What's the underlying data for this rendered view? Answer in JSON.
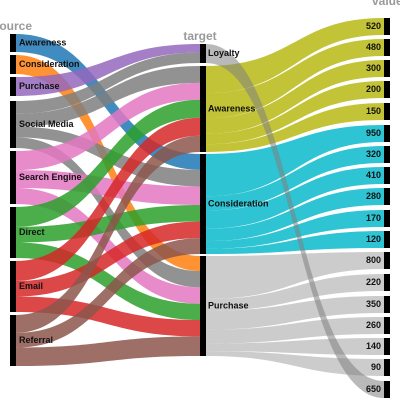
{
  "chart_data": {
    "type": "sankey",
    "columns": [
      "source",
      "target",
      "value"
    ],
    "colors": {
      "Awareness": "#1f77b4",
      "Consideration": "#ff7f0e",
      "Purchase": "#9467bd",
      "Social Media": "#7f7f7f",
      "Search Engine": "#e377c2",
      "Direct": "#2ca02c",
      "Email": "#d62728",
      "Referral": "#8c564b",
      "Loyalty": "#7f7f7f",
      "Awareness_value": "#bcbd22",
      "Consideration_value": "#17becf",
      "Purchase_value": "#c7c7c7"
    },
    "source_nodes": [
      "Awareness",
      "Consideration",
      "Purchase",
      "Social Media",
      "Search Engine",
      "Direct",
      "Email",
      "Referral"
    ],
    "target_nodes": [
      "Loyalty",
      "Awareness",
      "Consideration",
      "Purchase"
    ],
    "value_nodes": [
      "520",
      "480",
      "300",
      "200",
      "150",
      "950",
      "320",
      "410",
      "280",
      "170",
      "120",
      "800",
      "220",
      "350",
      "260",
      "140",
      "90",
      "650"
    ],
    "links": [
      {
        "source": "Awareness",
        "target": "Consideration",
        "value": 240
      },
      {
        "source": "Consideration",
        "target": "Purchase",
        "value": 230
      },
      {
        "source": "Purchase",
        "target": "Loyalty",
        "value": 240
      },
      {
        "source": "Social Media",
        "target": "Loyalty",
        "value": 300
      },
      {
        "source": "Social Media",
        "target": "Awareness",
        "value": 300
      },
      {
        "source": "Social Media",
        "target": "Consideration",
        "value": 250
      },
      {
        "source": "Social Media",
        "target": "Purchase",
        "value": 250
      },
      {
        "source": "Search Engine",
        "target": "Awareness",
        "value": 300
      },
      {
        "source": "Search Engine",
        "target": "Consideration",
        "value": 280
      },
      {
        "source": "Search Engine",
        "target": "Purchase",
        "value": 250
      },
      {
        "source": "Direct",
        "target": "Awareness",
        "value": 320
      },
      {
        "source": "Direct",
        "target": "Consideration",
        "value": 250
      },
      {
        "source": "Direct",
        "target": "Purchase",
        "value": 250
      },
      {
        "source": "Email",
        "target": "Awareness",
        "value": 320
      },
      {
        "source": "Email",
        "target": "Consideration",
        "value": 250
      },
      {
        "source": "Email",
        "target": "Purchase",
        "value": 250
      },
      {
        "source": "Referral",
        "target": "Awareness",
        "value": 290
      },
      {
        "source": "Referral",
        "target": "Consideration",
        "value": 240
      },
      {
        "source": "Referral",
        "target": "Purchase",
        "value": 300
      },
      {
        "source": "Awareness",
        "target": "520",
        "value": 520
      },
      {
        "source": "Awareness",
        "target": "480",
        "value": 480
      },
      {
        "source": "Awareness",
        "target": "300",
        "value": 300
      },
      {
        "source": "Awareness",
        "target": "200",
        "value": 200
      },
      {
        "source": "Awareness",
        "target": "150",
        "value": 150
      },
      {
        "source": "Consideration",
        "target": "950",
        "value": 950
      },
      {
        "source": "Consideration",
        "target": "320",
        "value": 320
      },
      {
        "source": "Consideration",
        "target": "410",
        "value": 410
      },
      {
        "source": "Consideration",
        "target": "280",
        "value": 280
      },
      {
        "source": "Consideration",
        "target": "170",
        "value": 170
      },
      {
        "source": "Consideration",
        "target": "120",
        "value": 120
      },
      {
        "source": "Purchase",
        "target": "800",
        "value": 800
      },
      {
        "source": "Purchase",
        "target": "220",
        "value": 220
      },
      {
        "source": "Purchase",
        "target": "350",
        "value": 350
      },
      {
        "source": "Purchase",
        "target": "260",
        "value": 260
      },
      {
        "source": "Purchase",
        "target": "140",
        "value": 140
      },
      {
        "source": "Purchase",
        "target": "90",
        "value": 90
      },
      {
        "source": "Loyalty",
        "target": "650",
        "value": 650
      }
    ]
  }
}
